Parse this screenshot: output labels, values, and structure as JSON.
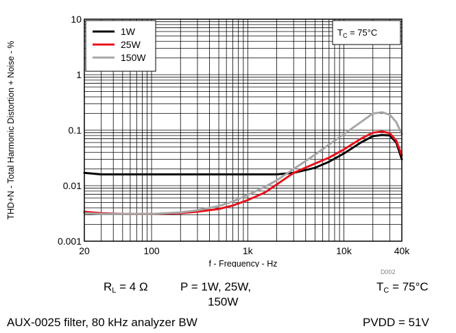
{
  "chart_data": {
    "type": "line",
    "title": "",
    "xlabel": "f - Frequency - Hz",
    "ylabel": "THD+N - Total Harmonic Distortion + Noise - %",
    "x_scale": "log",
    "y_scale": "log",
    "xlim": [
      20,
      40000
    ],
    "ylim": [
      0.001,
      10
    ],
    "x_ticks": [
      20,
      100,
      1000,
      10000,
      40000
    ],
    "x_tick_labels": [
      "20",
      "100",
      "1k",
      "10k",
      "40k"
    ],
    "y_ticks": [
      0.001,
      0.01,
      0.1,
      1,
      10
    ],
    "y_tick_labels": [
      "0.001",
      "0.01",
      "0.1",
      "1",
      "10"
    ],
    "grid": true,
    "legend_position": "top-left",
    "annotation_box": {
      "main": "T",
      "sub": "C",
      "rest": " = 75°C"
    },
    "series": [
      {
        "name": "1W",
        "color": "#000000",
        "x": [
          20,
          30,
          50,
          100,
          200,
          500,
          1000,
          2000,
          3000,
          5000,
          7000,
          10000,
          15000,
          20000,
          25000,
          30000,
          35000,
          40000
        ],
        "y": [
          0.017,
          0.016,
          0.016,
          0.016,
          0.016,
          0.016,
          0.016,
          0.016,
          0.017,
          0.021,
          0.027,
          0.038,
          0.06,
          0.078,
          0.082,
          0.08,
          0.06,
          0.03
        ]
      },
      {
        "name": "25W",
        "color": "#e8101a",
        "x": [
          20,
          30,
          50,
          100,
          200,
          300,
          500,
          700,
          1000,
          1500,
          2000,
          3000,
          5000,
          7000,
          10000,
          15000,
          20000,
          25000,
          30000,
          35000,
          40000
        ],
        "y": [
          0.0034,
          0.0032,
          0.0031,
          0.0031,
          0.0032,
          0.0034,
          0.0038,
          0.0044,
          0.0055,
          0.0075,
          0.0105,
          0.017,
          0.025,
          0.032,
          0.045,
          0.07,
          0.09,
          0.095,
          0.088,
          0.065,
          0.035
        ]
      },
      {
        "name": "150W",
        "color": "#a6a6a6",
        "x": [
          20,
          30,
          50,
          100,
          200,
          300,
          500,
          700,
          1000,
          1500,
          2000,
          3000,
          5000,
          7000,
          10000,
          15000,
          20000,
          25000,
          30000,
          35000,
          40000
        ],
        "y": [
          0.0032,
          0.0031,
          0.0031,
          0.0031,
          0.0033,
          0.0036,
          0.0043,
          0.0052,
          0.0068,
          0.0095,
          0.0125,
          0.02,
          0.036,
          0.055,
          0.085,
          0.14,
          0.2,
          0.21,
          0.19,
          0.14,
          0.085
        ]
      }
    ]
  },
  "doc_code": "D002",
  "captions": {
    "rl": {
      "main": "R",
      "sub": "L",
      "rest": " = 4 Ω"
    },
    "power_line1": "P = 1W, 25W,",
    "power_line2": "150W",
    "tc": {
      "main": "T",
      "sub": "C",
      "rest": " = 75°C"
    },
    "filter": "AUX-0025 filter, 80 kHz analyzer BW",
    "pvdd": "PVDD = 51V"
  }
}
